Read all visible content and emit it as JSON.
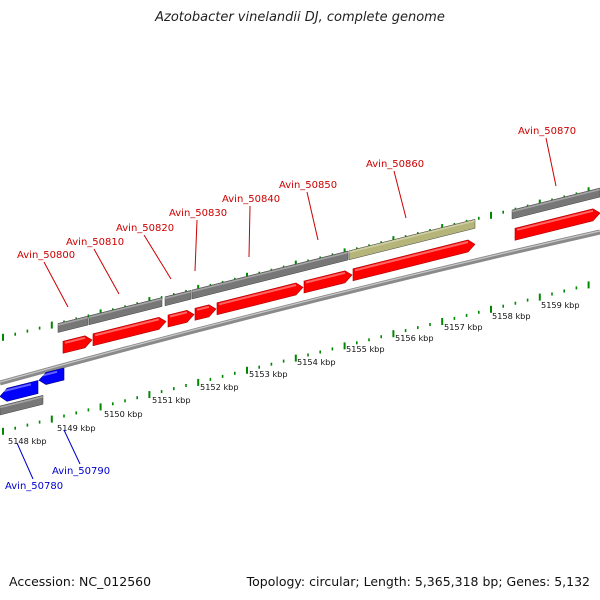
{
  "title": "Azotobacter vinelandii DJ, complete genome",
  "footer": {
    "accession": "Accession: NC_012560",
    "summary": "Topology: circular; Length: 5,365,318 bp; Genes: 5,132"
  },
  "colors": {
    "forward_cds": "#ff0000",
    "reverse_cds": "#0000ff",
    "gene_bar": "#777777",
    "rna_gene": "#b5b57a",
    "label_forward": "#cc0000",
    "label_reverse": "#0000cc",
    "tick": "#008800"
  },
  "scale_labels": [
    "5148 kbp",
    "5149 kbp",
    "5150 kbp",
    "5151 kbp",
    "5152 kbp",
    "5153 kbp",
    "5154 kbp",
    "5155 kbp",
    "5156 kbp",
    "5157 kbp",
    "5158 kbp",
    "5159 kbp"
  ],
  "genes": [
    {
      "name": "Avin_50780",
      "strand": "reverse"
    },
    {
      "name": "Avin_50790",
      "strand": "reverse"
    },
    {
      "name": "Avin_50800",
      "strand": "forward"
    },
    {
      "name": "Avin_50810",
      "strand": "forward"
    },
    {
      "name": "Avin_50820",
      "strand": "forward"
    },
    {
      "name": "Avin_50830",
      "strand": "forward"
    },
    {
      "name": "Avin_50840",
      "strand": "forward"
    },
    {
      "name": "Avin_50850",
      "strand": "forward"
    },
    {
      "name": "Avin_50860",
      "strand": "forward"
    },
    {
      "name": "Avin_50870",
      "strand": "forward"
    }
  ]
}
